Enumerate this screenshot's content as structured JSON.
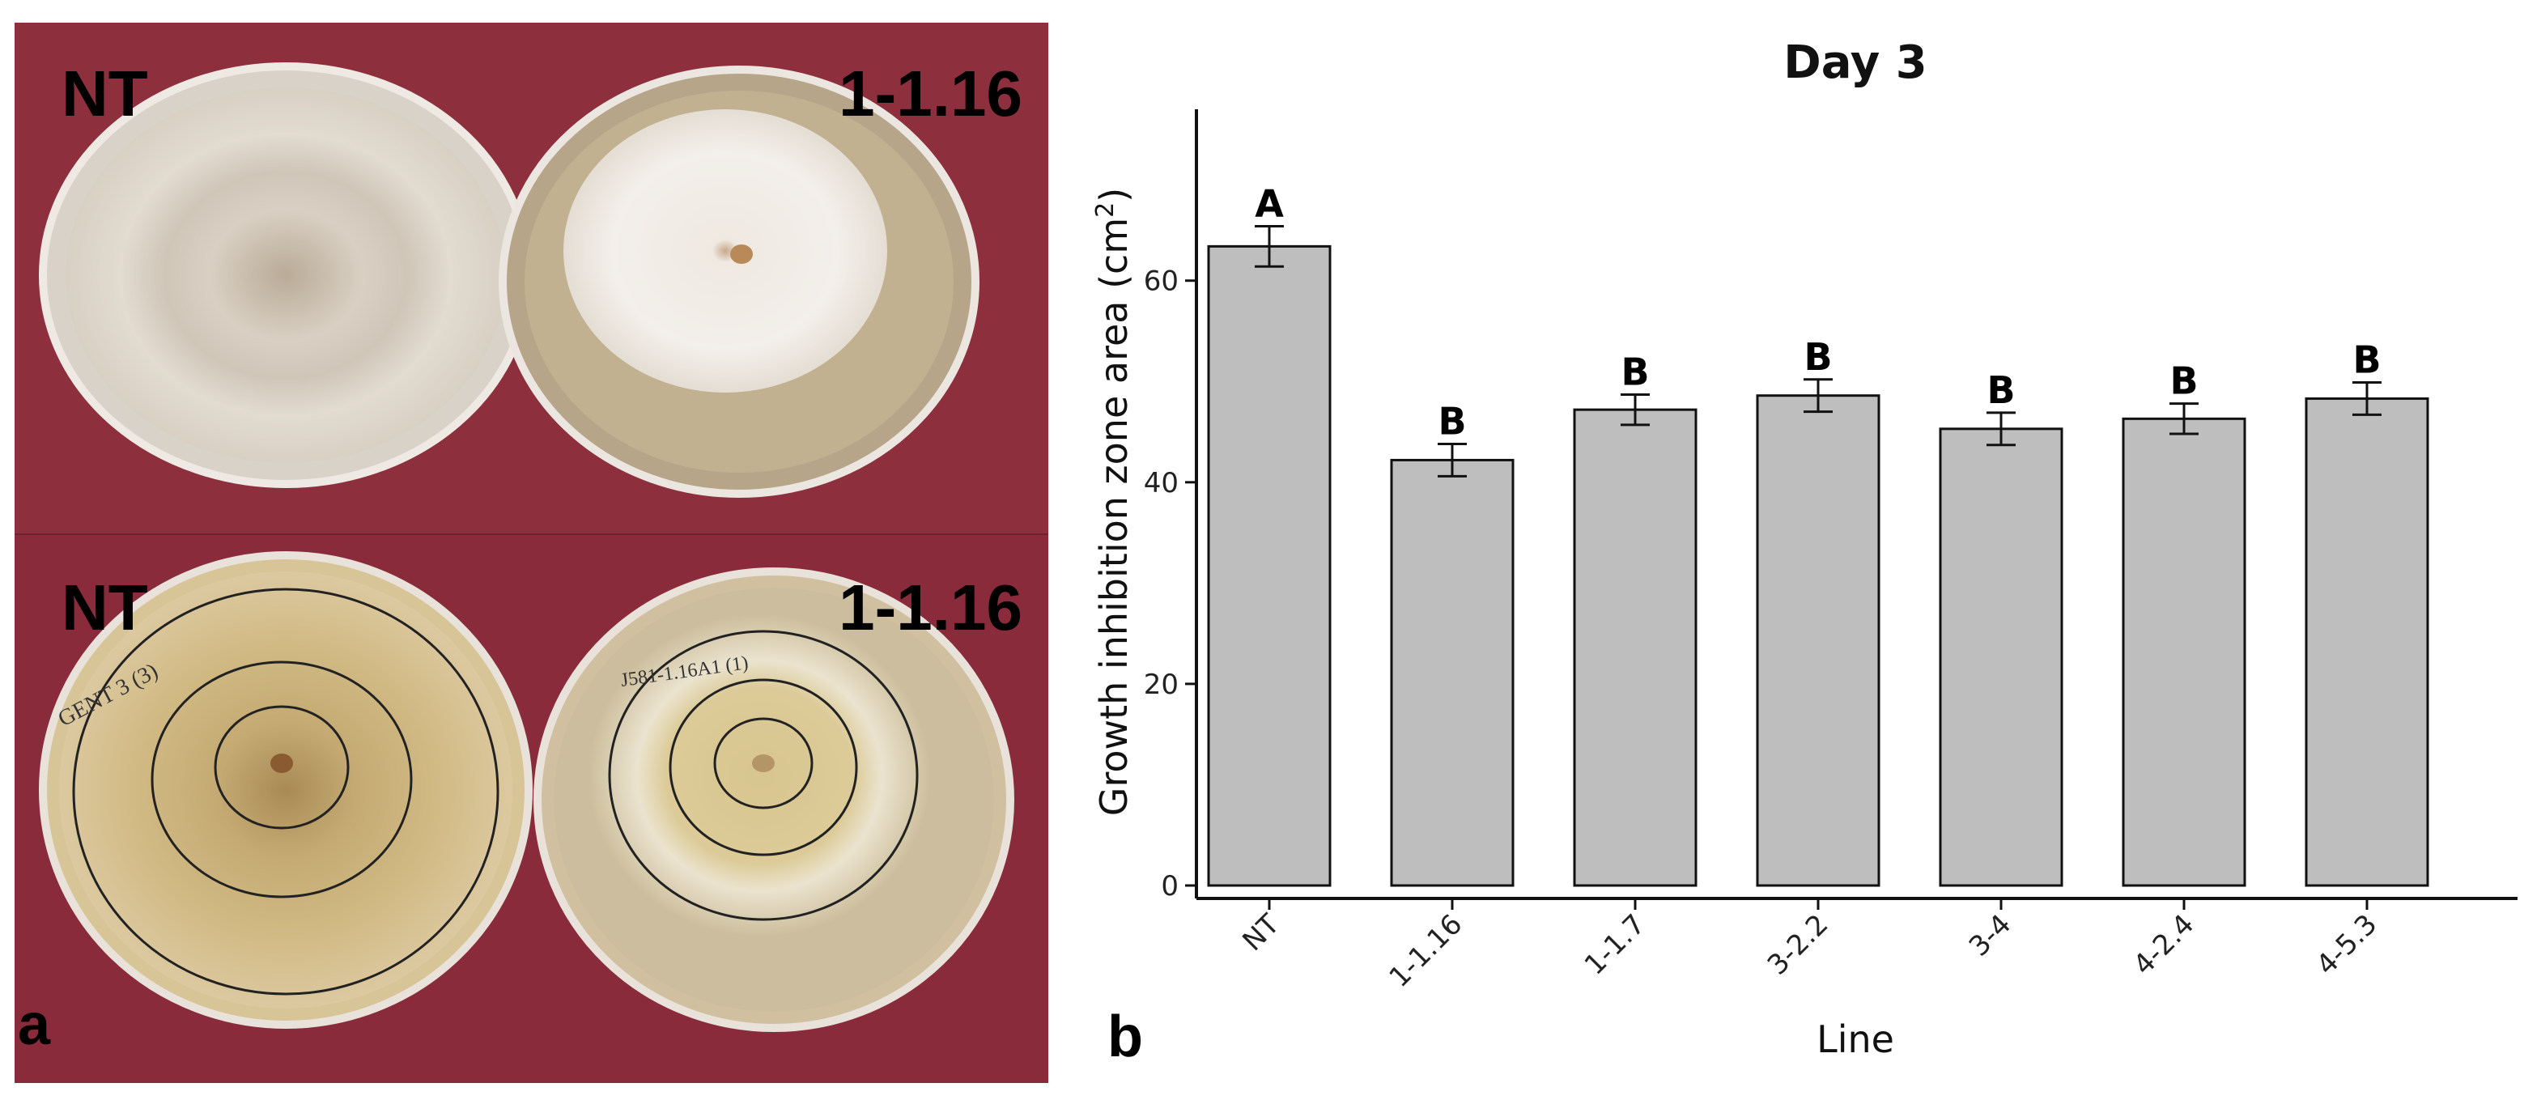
{
  "panel_a": {
    "letter": "a",
    "top_left_label": "NT",
    "top_right_label": "1-1.16",
    "bottom_left_label": "NT",
    "bottom_right_label": "1-1.16",
    "handwriting_left": "GENT 3 (3)",
    "handwriting_right": "J581-1.16A1 (1)",
    "background_color": "#8a2e3c"
  },
  "panel_b": {
    "letter": "b"
  },
  "chart_data": {
    "type": "bar",
    "title": "Day 3",
    "xlabel": "Line",
    "ylabel": "Growth inhibition zone area (cm²)",
    "ylim": [
      0,
      77
    ],
    "yticks": [
      0,
      20,
      40,
      60
    ],
    "categories": [
      "NT",
      "1-1.16",
      "1-1.7",
      "3-2.2",
      "3-4",
      "4-2.4",
      "4-5.3"
    ],
    "values": [
      63.4,
      42.2,
      47.2,
      48.6,
      45.3,
      46.3,
      48.3
    ],
    "errors": [
      2.0,
      1.6,
      1.5,
      1.6,
      1.6,
      1.5,
      1.6
    ],
    "significance": [
      "A",
      "B",
      "B",
      "B",
      "B",
      "B",
      "B"
    ],
    "bar_color": "#bebebe",
    "grid": false
  }
}
